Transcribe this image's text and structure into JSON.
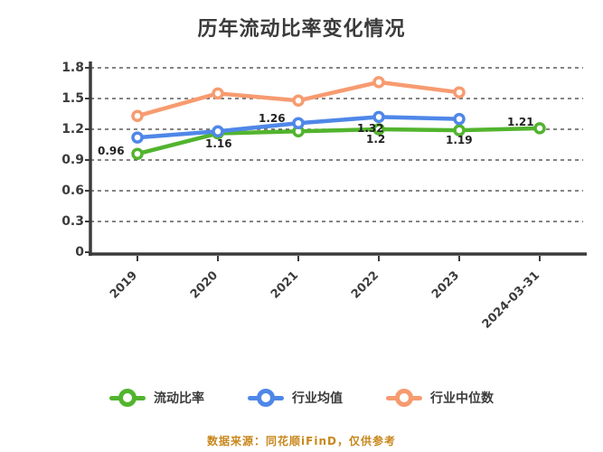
{
  "title": "历年流动比率变化情况",
  "watermark": "数据来源：同花顺iFinD，仅供参考",
  "colors": {
    "green": "#52b42e",
    "blue": "#4f87e8",
    "orange": "#f79b70",
    "axis": "#3b3b3b",
    "grid": "#3b3b3b",
    "label": "#222222",
    "watermark": "#c8871c"
  },
  "chart_data": {
    "type": "line",
    "title": "历年流动比率变化情况",
    "categories": [
      "2019",
      "2020",
      "2021",
      "2022",
      "2023",
      "2024-03-31"
    ],
    "series": [
      {
        "name": "流动比率",
        "color_key": "green",
        "values": [
          0.96,
          1.16,
          1.18,
          1.2,
          1.19,
          1.21
        ],
        "point_labels": [
          "0.96",
          "1.16",
          null,
          "1.2",
          "1.19",
          "1.21"
        ]
      },
      {
        "name": "行业均值",
        "color_key": "blue",
        "values": [
          1.12,
          1.18,
          1.26,
          1.32,
          1.3
        ],
        "point_labels": [
          null,
          null,
          "1.26",
          "1.32",
          null
        ]
      },
      {
        "name": "行业中位数",
        "color_key": "orange",
        "values": [
          1.33,
          1.55,
          1.48,
          1.66,
          1.56
        ],
        "point_labels": [
          null,
          null,
          null,
          null,
          null
        ]
      }
    ],
    "ylim": [
      0,
      1.8
    ],
    "ytick_labels": [
      "1.8",
      "1.5",
      "1.2",
      "0.9",
      "0.6",
      "0.3",
      "0"
    ],
    "ytick_values": [
      1.8,
      1.5,
      1.2,
      0.9,
      0.6,
      0.3,
      0
    ],
    "xlabel": "",
    "ylabel": "",
    "grid": "horizontal-dashed",
    "legend_position": "bottom"
  },
  "legend": {
    "items": [
      {
        "label": "流动比率",
        "color_key": "green"
      },
      {
        "label": "行业均值",
        "color_key": "blue"
      },
      {
        "label": "行业中位数",
        "color_key": "orange"
      }
    ]
  }
}
